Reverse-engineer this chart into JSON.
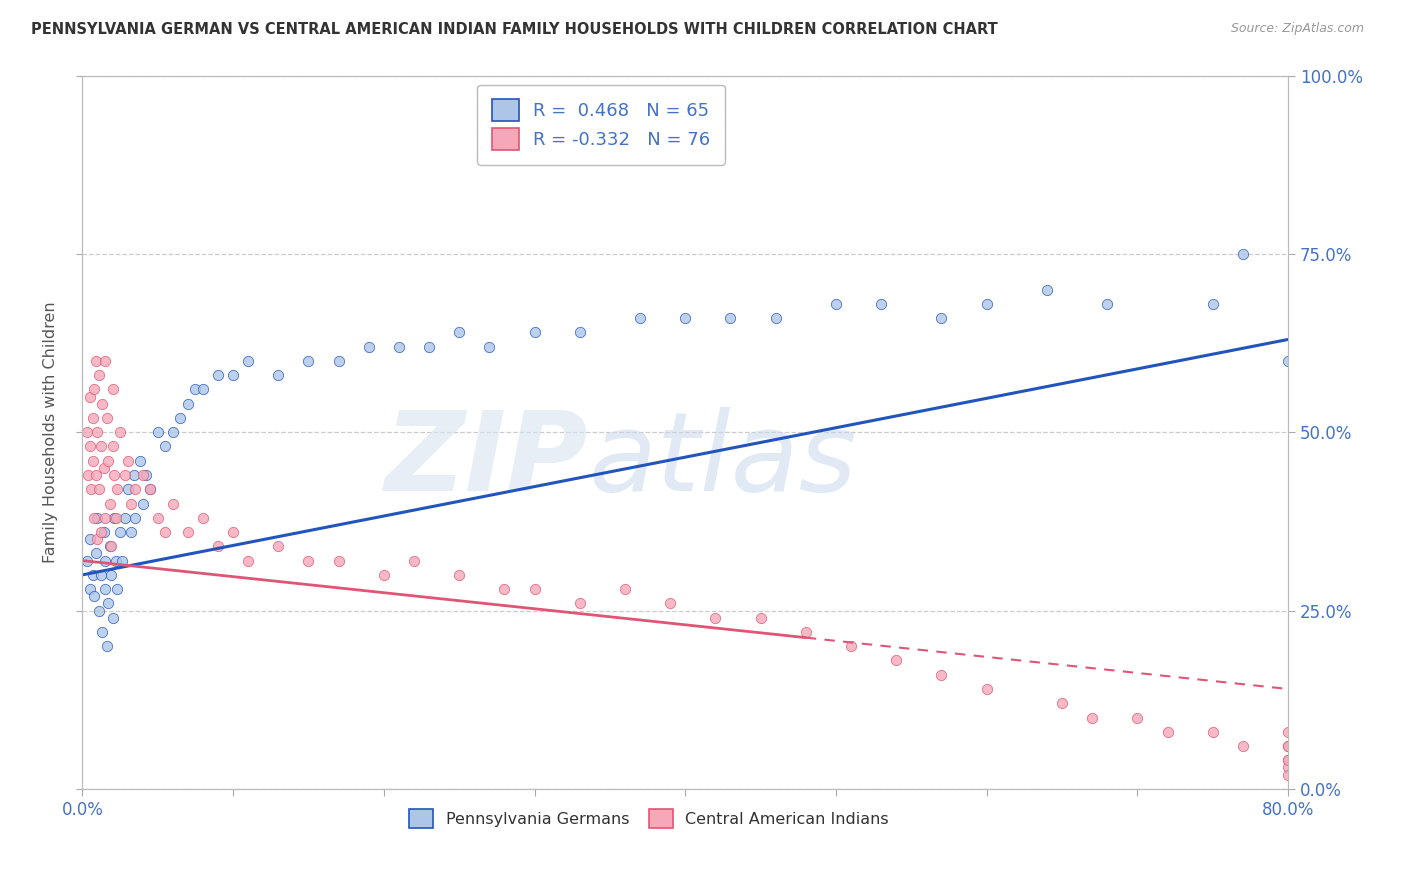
{
  "title": "PENNSYLVANIA GERMAN VS CENTRAL AMERICAN INDIAN FAMILY HOUSEHOLDS WITH CHILDREN CORRELATION CHART",
  "source": "Source: ZipAtlas.com",
  "ylabel": "Family Households with Children",
  "right_ytick_vals": [
    0.0,
    25.0,
    50.0,
    75.0,
    100.0
  ],
  "xlim": [
    0.0,
    80.0
  ],
  "ylim": [
    0.0,
    100.0
  ],
  "blue_R": 0.468,
  "blue_N": 65,
  "pink_R": -0.332,
  "pink_N": 76,
  "blue_color": "#adc6e8",
  "pink_color": "#f5a8b8",
  "blue_line_color": "#2255bb",
  "pink_line_color": "#e05575",
  "legend_label_blue": "Pennsylvania Germans",
  "legend_label_pink": "Central American Indians",
  "background_color": "#ffffff",
  "blue_line_y_start": 30.0,
  "blue_line_y_end": 63.0,
  "pink_line_y_start": 32.0,
  "pink_line_y_end": 14.0,
  "pink_solid_end_x": 48.0,
  "blue_dots_x": [
    0.3,
    0.5,
    0.5,
    0.7,
    0.8,
    0.9,
    1.0,
    1.1,
    1.2,
    1.3,
    1.4,
    1.5,
    1.5,
    1.6,
    1.7,
    1.8,
    1.9,
    2.0,
    2.1,
    2.2,
    2.3,
    2.5,
    2.6,
    2.8,
    3.0,
    3.2,
    3.4,
    3.5,
    3.8,
    4.0,
    4.2,
    4.5,
    5.0,
    5.5,
    6.0,
    6.5,
    7.0,
    7.5,
    8.0,
    9.0,
    10.0,
    11.0,
    13.0,
    15.0,
    17.0,
    19.0,
    21.0,
    23.0,
    25.0,
    27.0,
    30.0,
    33.0,
    37.0,
    40.0,
    43.0,
    46.0,
    50.0,
    53.0,
    57.0,
    60.0,
    64.0,
    68.0,
    75.0,
    77.0,
    80.0
  ],
  "blue_dots_y": [
    32,
    28,
    35,
    30,
    27,
    33,
    38,
    25,
    30,
    22,
    36,
    28,
    32,
    20,
    26,
    34,
    30,
    24,
    38,
    32,
    28,
    36,
    32,
    38,
    42,
    36,
    44,
    38,
    46,
    40,
    44,
    42,
    50,
    48,
    50,
    52,
    54,
    56,
    56,
    58,
    58,
    60,
    58,
    60,
    60,
    62,
    62,
    62,
    64,
    62,
    64,
    64,
    66,
    66,
    66,
    66,
    68,
    68,
    66,
    68,
    70,
    68,
    68,
    75,
    60
  ],
  "pink_dots_x": [
    0.3,
    0.4,
    0.5,
    0.5,
    0.6,
    0.7,
    0.7,
    0.8,
    0.8,
    0.9,
    0.9,
    1.0,
    1.0,
    1.1,
    1.1,
    1.2,
    1.2,
    1.3,
    1.4,
    1.5,
    1.5,
    1.6,
    1.7,
    1.8,
    1.9,
    2.0,
    2.0,
    2.1,
    2.2,
    2.3,
    2.5,
    2.8,
    3.0,
    3.2,
    3.5,
    4.0,
    4.5,
    5.0,
    5.5,
    6.0,
    7.0,
    8.0,
    9.0,
    10.0,
    11.0,
    13.0,
    15.0,
    17.0,
    20.0,
    22.0,
    25.0,
    28.0,
    30.0,
    33.0,
    36.0,
    39.0,
    42.0,
    45.0,
    48.0,
    51.0,
    54.0,
    57.0,
    60.0,
    65.0,
    67.0,
    70.0,
    72.0,
    75.0,
    77.0,
    80.0,
    80.0,
    80.0,
    80.0,
    80.0,
    80.0,
    80.0
  ],
  "pink_dots_y": [
    50,
    44,
    55,
    48,
    42,
    52,
    46,
    56,
    38,
    60,
    44,
    50,
    35,
    58,
    42,
    48,
    36,
    54,
    45,
    60,
    38,
    52,
    46,
    40,
    34,
    56,
    48,
    44,
    38,
    42,
    50,
    44,
    46,
    40,
    42,
    44,
    42,
    38,
    36,
    40,
    36,
    38,
    34,
    36,
    32,
    34,
    32,
    32,
    30,
    32,
    30,
    28,
    28,
    26,
    28,
    26,
    24,
    24,
    22,
    20,
    18,
    16,
    14,
    12,
    10,
    10,
    8,
    8,
    6,
    4,
    6,
    3,
    8,
    2,
    4,
    6
  ]
}
